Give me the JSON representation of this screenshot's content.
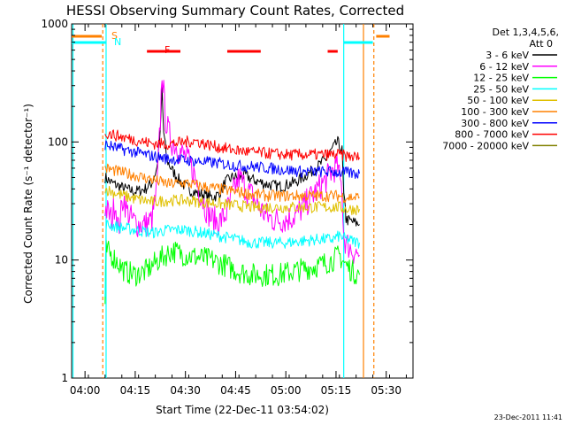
{
  "chart_data": {
    "type": "line",
    "title": "HESSI Observing Summary Count Rates, Corrected",
    "xlabel": "Start Time (22-Dec-11 03:54:02)",
    "ylabel": "Corrected Count Rate (s⁻¹ detector⁻¹)",
    "y_scale": "log",
    "ylim": [
      1,
      1000
    ],
    "xlim_minutes": [
      -4,
      98
    ],
    "x_ticks": [
      {
        "label": "04:00",
        "minute": 0
      },
      {
        "label": "04:15",
        "minute": 15
      },
      {
        "label": "04:30",
        "minute": 30
      },
      {
        "label": "04:45",
        "minute": 45
      },
      {
        "label": "05:00",
        "minute": 60
      },
      {
        "label": "05:15",
        "minute": 75
      },
      {
        "label": "05:30",
        "minute": 90
      }
    ],
    "y_ticks": [
      {
        "label": "1",
        "value": 1
      },
      {
        "label": "10",
        "value": 10
      },
      {
        "label": "100",
        "value": 100
      },
      {
        "label": "1000",
        "value": 1000
      }
    ],
    "legend_header": [
      "Det 1,3,4,5,6,",
      "Att 0"
    ],
    "series": [
      {
        "name": "3 - 6 keV",
        "color": "#000000",
        "points": [
          [
            6,
            50
          ],
          [
            8,
            45
          ],
          [
            12,
            40
          ],
          [
            15,
            38
          ],
          [
            18,
            40
          ],
          [
            20,
            45
          ],
          [
            21.5,
            60
          ],
          [
            22.5,
            120
          ],
          [
            23,
            280
          ],
          [
            23.5,
            120
          ],
          [
            24.5,
            70
          ],
          [
            26,
            58
          ],
          [
            28,
            48
          ],
          [
            30,
            42
          ],
          [
            32,
            38
          ],
          [
            35,
            36
          ],
          [
            38,
            34
          ],
          [
            40,
            36
          ],
          [
            42,
            46
          ],
          [
            44,
            50
          ],
          [
            46,
            50
          ],
          [
            48,
            52
          ],
          [
            50,
            48
          ],
          [
            52,
            46
          ],
          [
            54,
            44
          ],
          [
            56,
            43
          ],
          [
            58,
            42
          ],
          [
            60,
            43
          ],
          [
            63,
            46
          ],
          [
            66,
            52
          ],
          [
            69,
            60
          ],
          [
            72,
            72
          ],
          [
            74,
            88
          ],
          [
            75.5,
            100
          ],
          [
            76,
            92
          ],
          [
            76.8,
            85
          ],
          [
            77.3,
            35
          ],
          [
            77.8,
            26
          ],
          [
            78,
            22
          ],
          [
            80,
            21
          ],
          [
            82,
            20
          ]
        ]
      },
      {
        "name": "6 - 12 keV",
        "color": "#ff00ff",
        "points": [
          [
            6,
            28
          ],
          [
            8,
            22
          ],
          [
            9,
            32
          ],
          [
            10,
            18
          ],
          [
            11.5,
            35
          ],
          [
            12.5,
            26
          ],
          [
            14,
            22
          ],
          [
            16,
            20
          ],
          [
            18,
            20
          ],
          [
            20,
            22
          ],
          [
            21.5,
            40
          ],
          [
            22.5,
            150
          ],
          [
            23,
            400
          ],
          [
            23.5,
            260
          ],
          [
            24,
            160
          ],
          [
            25,
            120
          ],
          [
            26,
            100
          ],
          [
            27,
            95
          ],
          [
            28,
            85
          ],
          [
            30,
            75
          ],
          [
            32,
            60
          ],
          [
            34,
            40
          ],
          [
            36,
            28
          ],
          [
            38,
            22
          ],
          [
            40,
            21
          ],
          [
            42,
            24
          ],
          [
            44,
            35
          ],
          [
            45,
            42
          ],
          [
            46,
            50
          ],
          [
            47,
            46
          ],
          [
            48,
            40
          ],
          [
            50,
            35
          ],
          [
            52,
            28
          ],
          [
            54,
            24
          ],
          [
            56,
            22
          ],
          [
            58,
            22
          ],
          [
            60,
            22
          ],
          [
            63,
            24
          ],
          [
            66,
            30
          ],
          [
            69,
            38
          ],
          [
            72,
            48
          ],
          [
            74,
            58
          ],
          [
            75.5,
            62
          ],
          [
            76,
            50
          ],
          [
            76.8,
            40
          ],
          [
            77.3,
            16
          ],
          [
            78,
            14
          ],
          [
            80,
            12
          ],
          [
            82,
            11
          ]
        ]
      },
      {
        "name": "12 - 25 keV",
        "color": "#00ff00",
        "points": [
          [
            6,
            4
          ],
          [
            6.3,
            12
          ],
          [
            8,
            11
          ],
          [
            12,
            8
          ],
          [
            15,
            7.5
          ],
          [
            18,
            8
          ],
          [
            22,
            10
          ],
          [
            24,
            11
          ],
          [
            26,
            12
          ],
          [
            30,
            11
          ],
          [
            34,
            10.5
          ],
          [
            38,
            10
          ],
          [
            42,
            9
          ],
          [
            46,
            8
          ],
          [
            50,
            7.5
          ],
          [
            54,
            7.5
          ],
          [
            58,
            7.5
          ],
          [
            62,
            8
          ],
          [
            66,
            8.5
          ],
          [
            70,
            9
          ],
          [
            74,
            10
          ],
          [
            76,
            11
          ],
          [
            78,
            9
          ],
          [
            80,
            8
          ],
          [
            82,
            7.5
          ]
        ]
      },
      {
        "name": "25 - 50 keV",
        "color": "#00ffff",
        "points": [
          [
            6,
            5
          ],
          [
            6.3,
            20
          ],
          [
            10,
            19
          ],
          [
            15,
            18
          ],
          [
            20,
            17
          ],
          [
            25,
            18
          ],
          [
            30,
            18
          ],
          [
            35,
            17
          ],
          [
            40,
            16
          ],
          [
            45,
            15
          ],
          [
            50,
            14
          ],
          [
            55,
            14
          ],
          [
            60,
            14
          ],
          [
            65,
            14.5
          ],
          [
            70,
            15
          ],
          [
            74,
            15
          ],
          [
            76,
            16
          ],
          [
            78,
            15
          ],
          [
            80,
            14.5
          ],
          [
            82,
            14
          ]
        ]
      },
      {
        "name": "50 - 100 keV",
        "color": "#e0c000",
        "points": [
          [
            6,
            40
          ],
          [
            10,
            36
          ],
          [
            15,
            33
          ],
          [
            20,
            31
          ],
          [
            25,
            32
          ],
          [
            30,
            32
          ],
          [
            35,
            31
          ],
          [
            40,
            30
          ],
          [
            45,
            29
          ],
          [
            50,
            28
          ],
          [
            55,
            28
          ],
          [
            60,
            28
          ],
          [
            65,
            28
          ],
          [
            70,
            28
          ],
          [
            74,
            28
          ],
          [
            76,
            28
          ],
          [
            78,
            27
          ],
          [
            80,
            27
          ],
          [
            82,
            27
          ]
        ]
      },
      {
        "name": "100 - 300 keV",
        "color": "#ff8000",
        "points": [
          [
            6,
            60
          ],
          [
            10,
            56
          ],
          [
            15,
            52
          ],
          [
            20,
            48
          ],
          [
            25,
            44
          ],
          [
            30,
            45
          ],
          [
            35,
            42
          ],
          [
            40,
            40
          ],
          [
            45,
            38
          ],
          [
            50,
            36
          ],
          [
            55,
            35
          ],
          [
            60,
            35
          ],
          [
            65,
            35
          ],
          [
            70,
            35
          ],
          [
            74,
            35
          ],
          [
            76,
            35
          ],
          [
            78,
            34
          ],
          [
            80,
            34
          ],
          [
            82,
            34
          ]
        ]
      },
      {
        "name": "300 - 800 keV",
        "color": "#0000ff",
        "points": [
          [
            6,
            95
          ],
          [
            10,
            88
          ],
          [
            15,
            82
          ],
          [
            20,
            76
          ],
          [
            25,
            72
          ],
          [
            30,
            70
          ],
          [
            35,
            68
          ],
          [
            40,
            66
          ],
          [
            45,
            63
          ],
          [
            50,
            62
          ],
          [
            55,
            60
          ],
          [
            60,
            58
          ],
          [
            65,
            56
          ],
          [
            70,
            56
          ],
          [
            74,
            56
          ],
          [
            76,
            55
          ],
          [
            78,
            55
          ],
          [
            80,
            54
          ],
          [
            82,
            54
          ]
        ]
      },
      {
        "name": "800 - 7000 keV",
        "color": "#ff0000",
        "points": [
          [
            6,
            120
          ],
          [
            10,
            112
          ],
          [
            15,
            104
          ],
          [
            20,
            97
          ],
          [
            25,
            96
          ],
          [
            30,
            100
          ],
          [
            33,
            102
          ],
          [
            36,
            96
          ],
          [
            40,
            90
          ],
          [
            45,
            85
          ],
          [
            50,
            82
          ],
          [
            55,
            80
          ],
          [
            60,
            78
          ],
          [
            65,
            78
          ],
          [
            70,
            78
          ],
          [
            74,
            78
          ],
          [
            76,
            78
          ],
          [
            78,
            76
          ],
          [
            80,
            75
          ],
          [
            82,
            74
          ]
        ]
      },
      {
        "name": "7000 - 20000 keV",
        "color": "#808000",
        "points": []
      }
    ],
    "annotations": {
      "saa_label": "S",
      "night_label": "N",
      "flare_label": "F",
      "flare_intervals_minutes": [
        [
          18.5,
          28.5
        ],
        [
          42.5,
          52.5
        ],
        [
          72.5,
          75.5
        ]
      ],
      "saa_interval_minutes": [
        [
          -4,
          5
        ]
      ],
      "night_intervals_minutes": [
        [
          -4,
          6.3
        ],
        [
          77.3,
          86
        ]
      ],
      "vlines": [
        {
          "minute": -3.6,
          "color": "#00ffff",
          "dashed": false
        },
        {
          "minute": 5.3,
          "color": "#ff8000",
          "dashed": true
        },
        {
          "minute": 6.3,
          "color": "#00ffff",
          "dashed": false
        },
        {
          "minute": 77.3,
          "color": "#00ffff",
          "dashed": false
        },
        {
          "minute": 83.2,
          "color": "#ff8000",
          "dashed": false
        },
        {
          "minute": 86.3,
          "color": "#ff8000",
          "dashed": true
        }
      ]
    },
    "footer_date": "23-Dec-2011 11:41"
  }
}
